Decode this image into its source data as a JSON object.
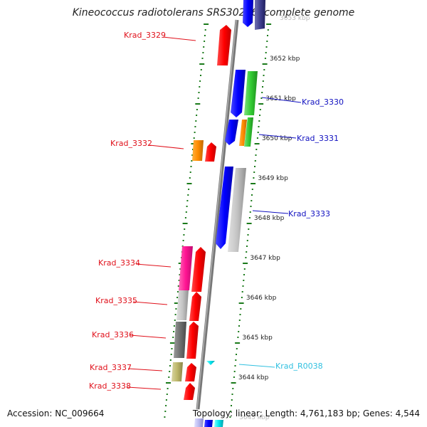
{
  "title": "Kineococcus radiotolerans SRS30216, complete genome",
  "footer": {
    "accession": "Accession: NC_009664",
    "summary": "Topology: linear; Length: 4,761,183 bp; Genes: 4,544"
  },
  "colors": {
    "backbone": "#8a8a8a",
    "tick": "#1a7a1a",
    "forward_label": "#e0101a",
    "reverse_label": "#1010c0",
    "rna_label": "#30c0e0",
    "scale_text": "#222222"
  },
  "scale": {
    "unit": "kbp",
    "ticks": [
      "3652 kbp",
      "3651 kbp",
      "3650 kbp",
      "3649 kbp",
      "3648 kbp",
      "3647 kbp",
      "3646 kbp",
      "3645 kbp",
      "3644 kbp"
    ],
    "partial_top_label": "3653 kbp",
    "partial_bottom_label": "3643 kbp"
  },
  "genes": [
    {
      "label": "Krad_3329",
      "strand": "forward",
      "color": "#ff0000"
    },
    {
      "label": "Krad_3330",
      "strand": "reverse",
      "color": "#0000ff"
    },
    {
      "label": "Krad_3331",
      "strand": "reverse",
      "color": "#0000ff"
    },
    {
      "label": "Krad_3332",
      "strand": "forward",
      "color": "#ff0000"
    },
    {
      "label": "Krad_3333",
      "strand": "reverse",
      "color": "#0000ff"
    },
    {
      "label": "Krad_3334",
      "strand": "forward",
      "color": "#ff0000"
    },
    {
      "label": "Krad_3335",
      "strand": "forward",
      "color": "#ff0000"
    },
    {
      "label": "Krad_3336",
      "strand": "forward",
      "color": "#ff0000"
    },
    {
      "label": "Krad_R0038",
      "strand": "reverse",
      "color": "#33ccee"
    },
    {
      "label": "Krad_3337",
      "strand": "forward",
      "color": "#ff0000"
    },
    {
      "label": "Krad_3338",
      "strand": "forward",
      "color": "#ff0000"
    }
  ]
}
